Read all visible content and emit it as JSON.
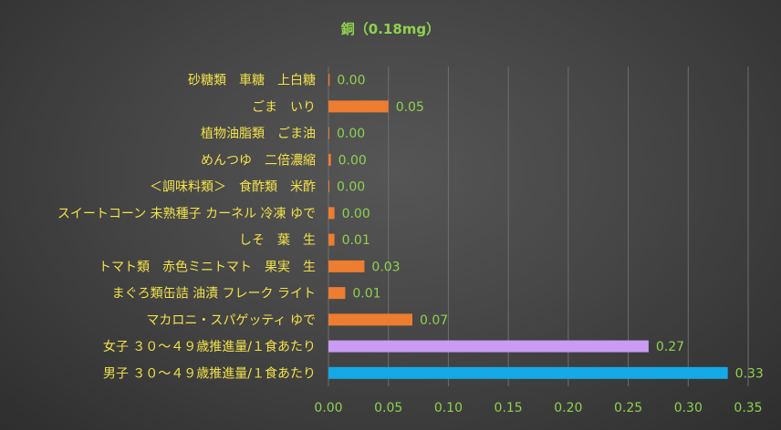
{
  "chart_data": {
    "type": "bar",
    "orientation": "horizontal",
    "title": "銅（0.18mg）",
    "xlabel": "",
    "ylabel": "",
    "xlim": [
      0,
      0.35
    ],
    "ticks": [
      "0.00",
      "0.05",
      "0.10",
      "0.15",
      "0.20",
      "0.25",
      "0.30",
      "0.35"
    ],
    "tick_values": [
      0,
      0.05,
      0.1,
      0.15,
      0.2,
      0.25,
      0.3,
      0.35
    ],
    "grid": true,
    "legend": "none",
    "categories": [
      "砂糖類　車糖　上白糖",
      "ごま　いり",
      "植物油脂類　ごま油",
      "めんつゆ　二倍濃縮",
      "＜調味料類＞　食酢類　米酢",
      "スイートコーン 未熟種子 カーネル 冷凍 ゆで",
      "しそ　葉　生",
      "トマト類　赤色ミニトマト　果実　生",
      "まぐろ類缶詰 油漬 フレーク ライト",
      "マカロニ・スパゲッティ ゆで",
      "女子 ３０～４９歳推進量/１食あたり",
      "男子 ３０～４９歳推進量/１食あたり"
    ],
    "values": [
      0.001,
      0.05,
      0.0005,
      0.002,
      0.0005,
      0.005,
      0.005,
      0.03,
      0.014,
      0.07,
      0.267,
      0.333
    ],
    "value_labels": [
      "0.00",
      "0.05",
      "0.00",
      "0.00",
      "0.00",
      "0.00",
      "0.01",
      "0.03",
      "0.01",
      "0.07",
      "0.27",
      "0.33"
    ],
    "colors": [
      "#ed7d31",
      "#ed7d31",
      "#ed7d31",
      "#ed7d31",
      "#ed7d31",
      "#ed7d31",
      "#ed7d31",
      "#ed7d31",
      "#ed7d31",
      "#ed7d31",
      "#c99cf2",
      "#14a9e6"
    ]
  }
}
